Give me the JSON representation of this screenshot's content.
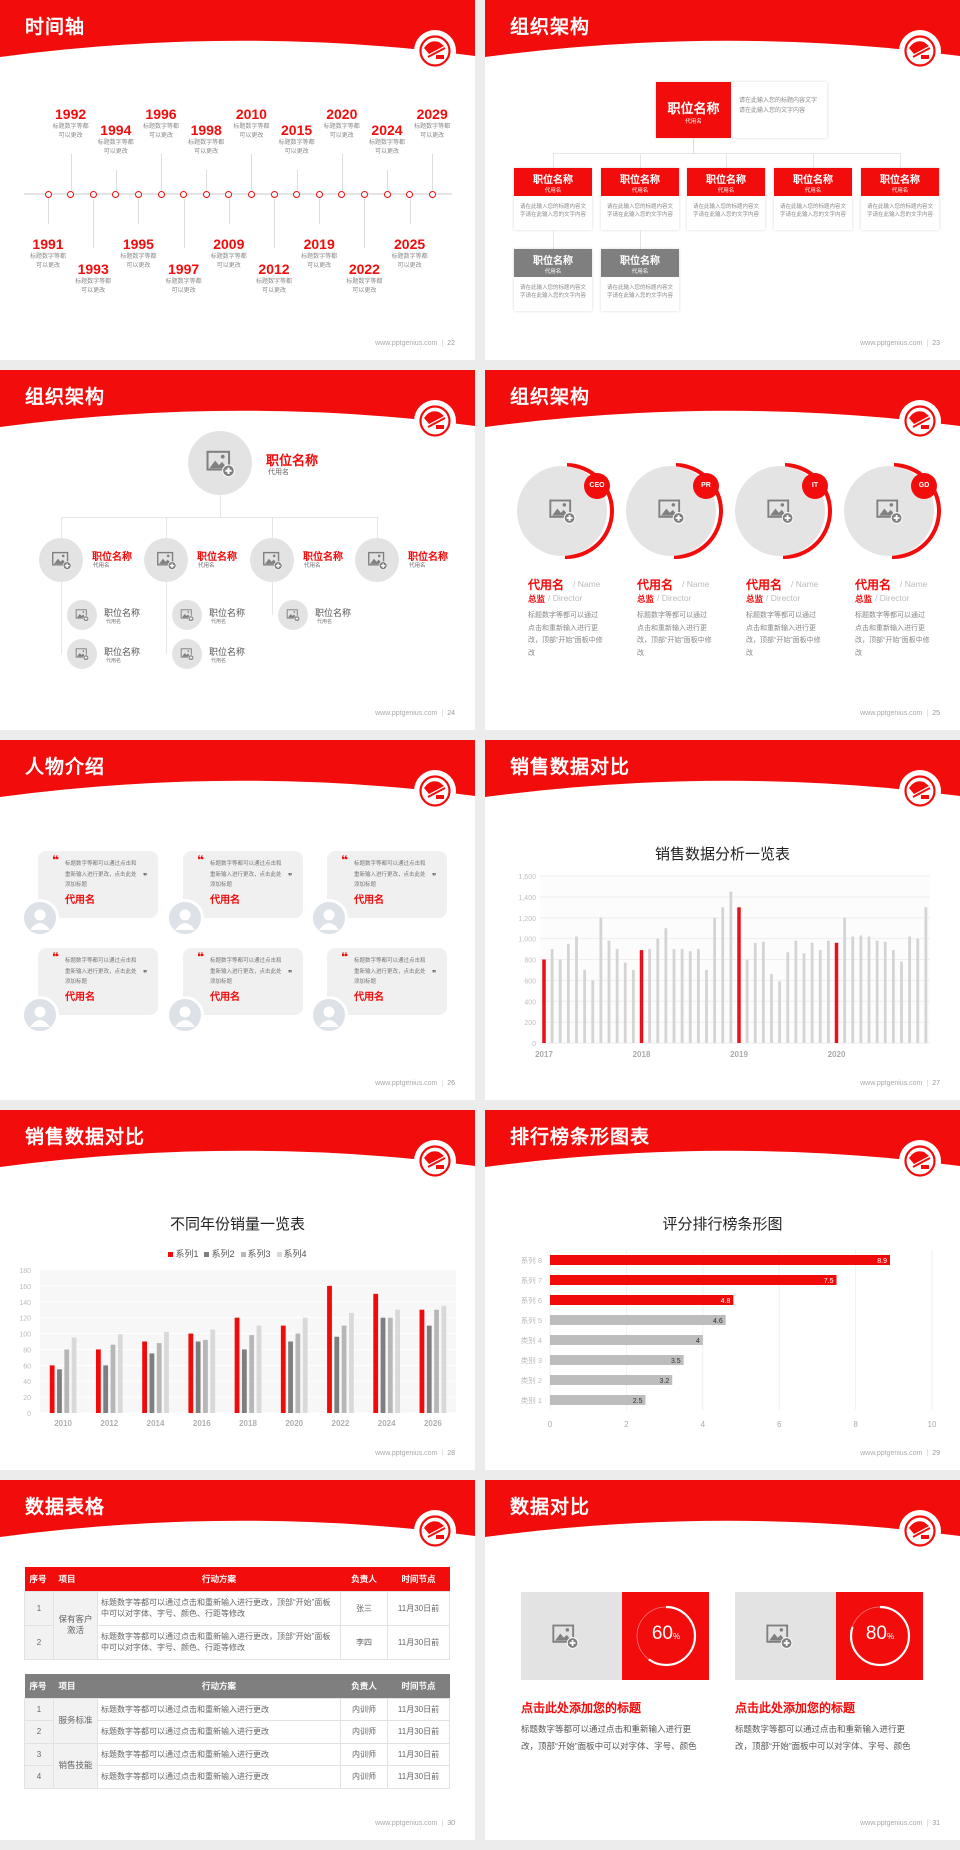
{
  "theme": {
    "accent": "#f20c0c",
    "dark_gray": "#7f7f7f",
    "mid_gray": "#b5b5b5",
    "light_gray": "#e6e6e6"
  },
  "footer_site": "www.pptgenius.com",
  "slides": [
    {
      "type": "timeline",
      "title": "时间轴",
      "page": "22",
      "events": [
        {
          "year": "1991",
          "lines": [
            "标题数字等都",
            "可以更改"
          ]
        },
        {
          "year": "1992",
          "lines": [
            "标题数字等都",
            "可以更改"
          ]
        },
        {
          "year": "1993",
          "lines": [
            "标题数字等都",
            "可以更改"
          ]
        },
        {
          "year": "1994",
          "lines": [
            "标题数字等都",
            "可以更改"
          ]
        },
        {
          "year": "1995",
          "lines": [
            "标题数字等都",
            "可以更改"
          ]
        },
        {
          "year": "1996",
          "lines": [
            "标题数字等都",
            "可以更改"
          ]
        },
        {
          "year": "1997",
          "lines": [
            "标题数字等都",
            "可以更改"
          ]
        },
        {
          "year": "1998",
          "lines": [
            "标题数字等都",
            "可以更改"
          ]
        },
        {
          "year": "2009",
          "lines": [
            "标题数字等都",
            "可以更改"
          ]
        },
        {
          "year": "2010",
          "lines": [
            "标题数字等都",
            "可以更改"
          ]
        },
        {
          "year": "2012",
          "lines": [
            "标题数字等都",
            "可以更改"
          ]
        },
        {
          "year": "2015",
          "lines": [
            "标题数字等都",
            "可以更改"
          ]
        },
        {
          "year": "2019",
          "lines": [
            "标题数字等都",
            "可以更改"
          ]
        },
        {
          "year": "2020",
          "lines": [
            "标题数字等都",
            "可以更改"
          ]
        },
        {
          "year": "2022",
          "lines": [
            "标题数字等都",
            "可以更改"
          ]
        },
        {
          "year": "2024",
          "lines": [
            "标题数字等都",
            "可以更改"
          ]
        },
        {
          "year": "2025",
          "lines": [
            "标题数字等都",
            "可以更改"
          ]
        },
        {
          "year": "2029",
          "lines": [
            "标题数字等都",
            "可以更改"
          ]
        }
      ]
    },
    {
      "type": "org_boxes",
      "title": "组织架构",
      "page": "23",
      "top": {
        "title": "职位名称",
        "sub": "代用名",
        "desc": "请在此输入您的标题内容文字请在此输入您的文字内容"
      },
      "level2": [
        {
          "title": "职位名称",
          "sub": "代用名",
          "desc": "请在此输入您的标题内容文字请在此输入您的文字内容"
        },
        {
          "title": "职位名称",
          "sub": "代用名",
          "desc": "请在此输入您的标题内容文字请在此输入您的文字内容"
        },
        {
          "title": "职位名称",
          "sub": "代用名",
          "desc": "请在此输入您的标题内容文字请在此输入您的文字内容"
        },
        {
          "title": "职位名称",
          "sub": "代用名",
          "desc": "请在此输入您的标题内容文字请在此输入您的文字内容"
        },
        {
          "title": "职位名称",
          "sub": "代用名",
          "desc": "请在此输入您的标题内容文字请在此输入您的文字内容"
        }
      ],
      "level3": [
        {
          "title": "职位名称",
          "sub": "代用名",
          "desc": "请在此输入您的标题内容文字请在此输入您的文字内容"
        },
        {
          "title": "职位名称",
          "sub": "代用名",
          "desc": "请在此输入您的标题内容文字请在此输入您的文字内容"
        }
      ]
    },
    {
      "type": "org_circles",
      "title": "组织架构",
      "page": "24",
      "top": {
        "title": "职位名称",
        "sub": "代用名"
      },
      "level2": [
        {
          "title": "职位名称",
          "sub": "代用名",
          "children": [
            {
              "title": "职位名称",
              "sub": "代用名"
            },
            {
              "title": "职位名称",
              "sub": "代用名"
            }
          ]
        },
        {
          "title": "职位名称",
          "sub": "代用名",
          "children": [
            {
              "title": "职位名称",
              "sub": "代用名"
            },
            {
              "title": "职位名称",
              "sub": "代用名"
            }
          ]
        },
        {
          "title": "职位名称",
          "sub": "代用名",
          "children": [
            {
              "title": "职位名称",
              "sub": "代用名"
            }
          ]
        },
        {
          "title": "职位名称",
          "sub": "代用名",
          "children": []
        }
      ]
    },
    {
      "type": "team",
      "title": "组织架构",
      "page": "25",
      "members": [
        {
          "badge": "CEO",
          "name": "代用名",
          "name_en": "/ Name",
          "role": "总监",
          "role_en": "/  Director",
          "desc": "标题数字等都可以通过点击和重新输入进行更改，顶部“开始”面板中修改"
        },
        {
          "badge": "PR",
          "name": "代用名",
          "name_en": "/ Name",
          "role": "总监",
          "role_en": "/  Director",
          "desc": "标题数字等都可以通过点击和重新输入进行更改，顶部“开始”面板中修改"
        },
        {
          "badge": "IT",
          "name": "代用名",
          "name_en": "/ Name",
          "role": "总监",
          "role_en": "/  Director",
          "desc": "标题数字等都可以通过点击和重新输入进行更改，顶部“开始”面板中修改"
        },
        {
          "badge": "GD",
          "name": "代用名",
          "name_en": "/ Name",
          "role": "总监",
          "role_en": "/  Director",
          "desc": "标题数字等都可以通过点击和重新输入进行更改，顶部“开始”面板中修改"
        }
      ]
    },
    {
      "type": "people",
      "title": "人物介绍",
      "page": "26",
      "open_quote": "❝",
      "close_quote": "❞",
      "cards": [
        {
          "quote": "标题数字等都可以通过点击和重新输入进行更改，点击此处添加标题",
          "name": "代用名"
        },
        {
          "quote": "标题数字等都可以通过点击和重新输入进行更改，点击此处添加标题",
          "name": "代用名"
        },
        {
          "quote": "标题数字等都可以通过点击和重新输入进行更改，点击此处添加标题",
          "name": "代用名"
        },
        {
          "quote": "标题数字等都可以通过点击和重新输入进行更改，点击此处添加标题",
          "name": "代用名"
        },
        {
          "quote": "标题数字等都可以通过点击和重新输入进行更改，点击此处添加标题",
          "name": "代用名"
        },
        {
          "quote": "标题数字等都可以通过点击和重新输入进行更改，点击此处添加标题",
          "name": "代用名"
        }
      ]
    },
    {
      "type": "chart_monthly",
      "title": "销售数据对比",
      "page": "27",
      "chart_index": 0
    },
    {
      "type": "chart_grouped",
      "title": "销售数据对比",
      "page": "28",
      "chart_index": 1
    },
    {
      "type": "chart_hbar",
      "title": "排行榜条形图表",
      "page": "29",
      "chart_index": 2
    },
    {
      "type": "tables",
      "title": "数据表格",
      "page": "30",
      "headers": [
        "序号",
        "项目",
        "行动方案",
        "负责人",
        "时间节点"
      ],
      "table1": {
        "groups": [
          {
            "project": "保有客户激活",
            "rows": [
              {
                "no": "1",
                "plan": "标题数字等都可以通过点击和重新输入进行更改，顶部“开始”面板中可以对字体、字号、颜色、行距等修改",
                "owner": "张三",
                "deadline": "11月30日前"
              },
              {
                "no": "2",
                "plan": "标题数字等都可以通过点击和重新输入进行更改，顶部“开始”面板中可以对字体、字号、颜色、行距等修改",
                "owner": "李四",
                "deadline": "11月30日前"
              }
            ]
          }
        ]
      },
      "table2": {
        "groups": [
          {
            "project": "服务标准",
            "rows": [
              {
                "no": "1",
                "plan": "标题数字等都可以通过点击和重新输入进行更改",
                "owner": "内训师",
                "deadline": "11月30日前"
              },
              {
                "no": "2",
                "plan": "标题数字等都可以通过点击和重新输入进行更改",
                "owner": "内训师",
                "deadline": "11月30日前"
              }
            ]
          },
          {
            "project": "销售技能",
            "rows": [
              {
                "no": "3",
                "plan": "标题数字等都可以通过点击和重新输入进行更改",
                "owner": "内训师",
                "deadline": "11月30日前"
              },
              {
                "no": "4",
                "plan": "标题数字等都可以通过点击和重新输入进行更改",
                "owner": "内训师",
                "deadline": "11月30日前"
              }
            ]
          }
        ]
      }
    },
    {
      "type": "compare",
      "title": "数据对比",
      "page": "31",
      "items": [
        {
          "percent": 60,
          "value": "60",
          "unit": "%",
          "heading": "点击此处添加您的标题",
          "desc": "标题数字等都可以通过点击和重新输入进行更改，顶部“开始”面板中可以对字体、字号、颜色"
        },
        {
          "percent": 80,
          "value": "80",
          "unit": "%",
          "heading": "点击此处添加您的标题",
          "desc": "标题数字等都可以通过点击和重新输入进行更改，顶部“开始”面板中可以对字体、字号、颜色"
        }
      ]
    }
  ],
  "chart_data": [
    {
      "type": "bar",
      "title": "销售数据分析一览表",
      "x_tick_labels": [
        "2017",
        "2018",
        "2019",
        "2020"
      ],
      "months_per_year": 12,
      "values": [
        800,
        900,
        800,
        950,
        1020,
        700,
        600,
        1200,
        980,
        900,
        770,
        700,
        890,
        900,
        1000,
        1100,
        900,
        900,
        880,
        900,
        700,
        1200,
        1300,
        1450,
        1300,
        800,
        960,
        970,
        660,
        590,
        870,
        980,
        860,
        960,
        890,
        980,
        960,
        1200,
        1020,
        1030,
        1020,
        980,
        970,
        890,
        780,
        1020,
        1000,
        1300
      ],
      "highlight": "first month of each year",
      "highlight_color": "#e8101a",
      "bar_color": "#d4d4d4",
      "ylim": [
        0,
        1600
      ],
      "yticks": [
        "0",
        "200",
        "400",
        "600",
        "800",
        "1,000",
        "1,200",
        "1,400",
        "1,600"
      ],
      "grid": true
    },
    {
      "type": "bar",
      "title": "不同年份销量一览表",
      "categories": [
        "2010",
        "2012",
        "2014",
        "2016",
        "2018",
        "2020",
        "2022",
        "2024",
        "2026"
      ],
      "series": [
        {
          "name": "系列1",
          "color": "#f00a0a",
          "values": [
            60,
            80,
            90,
            100,
            120,
            110,
            160,
            150,
            130
          ]
        },
        {
          "name": "系列2",
          "color": "#7f7f7f",
          "values": [
            55,
            60,
            75,
            90,
            80,
            90,
            96,
            120,
            110
          ]
        },
        {
          "name": "系列3",
          "color": "#b7b7b7",
          "values": [
            80,
            86,
            88,
            92,
            98,
            100,
            110,
            120,
            130
          ]
        },
        {
          "name": "系列4",
          "color": "#d9d9d9",
          "values": [
            95,
            99,
            102,
            105,
            110,
            120,
            126,
            130,
            135
          ]
        }
      ],
      "ylim": [
        0,
        180
      ],
      "yticks": [
        "0",
        "20",
        "40",
        "60",
        "80",
        "100",
        "120",
        "140",
        "160",
        "180"
      ],
      "legend": "top",
      "grid": true
    },
    {
      "type": "bar",
      "orientation": "horizontal",
      "title": "评分排行榜条形图",
      "categories": [
        "类别 1",
        "类别 2",
        "类别 3",
        "类别 4",
        "系列 5",
        "系列 6",
        "系列 7",
        "系列 8"
      ],
      "values": [
        2.5,
        3.2,
        3.5,
        4,
        4.6,
        4.8,
        7.5,
        8.9
      ],
      "labels": [
        "2.5",
        "3.2",
        "3.5",
        "4",
        "4.6",
        "4.8",
        "7.5",
        "8.9"
      ],
      "colors": [
        "#bdbdbd",
        "#bdbdbd",
        "#bdbdbd",
        "#bdbdbd",
        "#bdbdbd",
        "#f00a0a",
        "#f00a0a",
        "#f00a0a"
      ],
      "xlim": [
        0,
        10
      ],
      "xticks": [
        "0",
        "2",
        "4",
        "6",
        "8",
        "10"
      ],
      "grid": true
    }
  ]
}
